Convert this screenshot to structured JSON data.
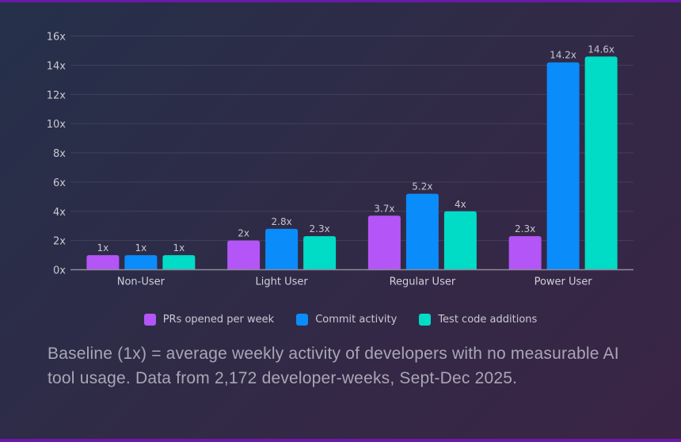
{
  "chart_data": {
    "type": "bar",
    "title": "",
    "xlabel": "",
    "ylabel": "",
    "ylim": [
      0,
      16
    ],
    "yticks": [
      0,
      2,
      4,
      6,
      8,
      10,
      12,
      14,
      16
    ],
    "ytick_labels": [
      "0x",
      "2x",
      "4x",
      "6x",
      "8x",
      "10x",
      "12x",
      "14x",
      "16x"
    ],
    "grid": true,
    "legend_position": "bottom-center",
    "categories": [
      "Non-User",
      "Light User",
      "Regular User",
      "Power User"
    ],
    "series": [
      {
        "name": "PRs opened per week",
        "color": "#b455f7",
        "values": [
          1,
          2,
          3.7,
          2.3
        ],
        "labels": [
          "1x",
          "2x",
          "3.7x",
          "2.3x"
        ]
      },
      {
        "name": "Commit activity",
        "color": "#0a8cfb",
        "values": [
          1,
          2.8,
          5.2,
          14.2
        ],
        "labels": [
          "1x",
          "2.8x",
          "5.2x",
          "14.2x"
        ]
      },
      {
        "name": "Test code additions",
        "color": "#01dcc6",
        "values": [
          1,
          2.3,
          4,
          14.6
        ],
        "labels": [
          "1x",
          "2.3x",
          "4x",
          "14.6x"
        ]
      }
    ]
  },
  "footnote": "Baseline (1x) = average weekly activity of developers with no measurable AI tool usage. Data from 2,172 developer-weeks, Sept-Dec 2025."
}
